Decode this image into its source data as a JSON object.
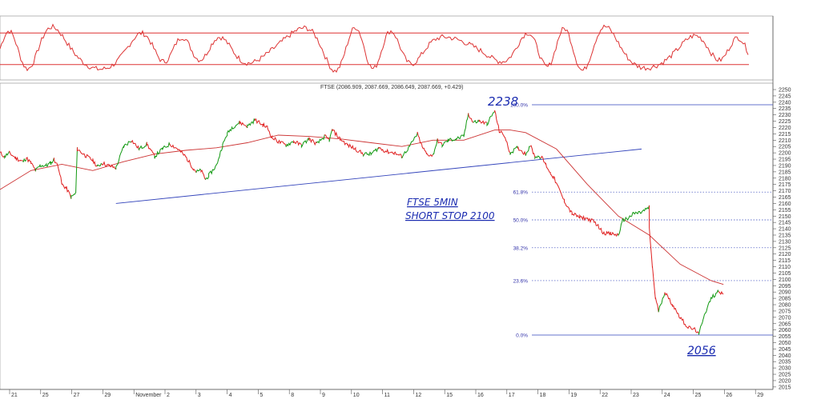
{
  "chart_data": [
    {
      "type": "line",
      "panel": "oscillator",
      "title": "",
      "series": [
        {
          "values": []
        }
      ],
      "reference_lines": [
        20,
        80
      ],
      "ylim": [
        0,
        100
      ]
    },
    {
      "type": "line",
      "panel": "price",
      "title": "FTSE (2086.909, 2087.669, 2086.649, 2087.669, +0.429)",
      "ylim": [
        2015,
        2250
      ],
      "y_ticks": [
        2015,
        2020,
        2025,
        2030,
        2035,
        2040,
        2045,
        2050,
        2055,
        2060,
        2065,
        2070,
        2075,
        2080,
        2085,
        2090,
        2095,
        2100,
        2105,
        2110,
        2115,
        2120,
        2125,
        2130,
        2135,
        2140,
        2145,
        2150,
        2155,
        2160,
        2165,
        2170,
        2175,
        2180,
        2185,
        2190,
        2195,
        2200,
        2205,
        2210,
        2215,
        2220,
        2225,
        2230,
        2235,
        2240,
        2245,
        2250
      ],
      "x_ticks": [
        "21",
        "25",
        "27",
        "29",
        "November",
        "2",
        "3",
        "4",
        "5",
        "8",
        "9",
        "10",
        "11",
        "12",
        "15",
        "16",
        "17",
        "18",
        "19",
        "22",
        "23",
        "24",
        "25",
        "26",
        "29"
      ],
      "price_path": [
        [
          0,
          2200
        ],
        [
          0.3,
          2197
        ],
        [
          0.6,
          2200
        ],
        [
          1,
          2196
        ],
        [
          1.3,
          2194
        ],
        [
          1.5,
          2193
        ],
        [
          1.7,
          2196
        ],
        [
          2,
          2192
        ],
        [
          2.3,
          2186
        ],
        [
          2.6,
          2190
        ],
        [
          3,
          2190
        ],
        [
          3.3,
          2192
        ],
        [
          3.5,
          2195
        ],
        [
          3.8,
          2188
        ],
        [
          4,
          2175
        ],
        [
          4.3,
          2172
        ],
        [
          4.6,
          2165
        ],
        [
          4.9,
          2168
        ],
        [
          5,
          2203
        ],
        [
          5.5,
          2198
        ],
        [
          6,
          2194
        ],
        [
          6.3,
          2189
        ],
        [
          6.6,
          2192
        ],
        [
          7,
          2190
        ],
        [
          7.5,
          2188
        ],
        [
          8,
          2205
        ],
        [
          8.5,
          2210
        ],
        [
          9,
          2203
        ],
        [
          9.5,
          2207
        ],
        [
          10,
          2197
        ],
        [
          10.5,
          2203
        ],
        [
          11,
          2207
        ],
        [
          11.5,
          2203
        ],
        [
          12,
          2197
        ],
        [
          12.5,
          2188
        ],
        [
          12.7,
          2185
        ],
        [
          13,
          2186
        ],
        [
          13.3,
          2179
        ],
        [
          13.5,
          2182
        ],
        [
          14,
          2190
        ],
        [
          14.4,
          2206
        ],
        [
          14.7,
          2215
        ],
        [
          15,
          2220
        ],
        [
          15.5,
          2224
        ],
        [
          16,
          2221
        ],
        [
          16.5,
          2226
        ],
        [
          17,
          2222
        ],
        [
          17.3,
          2220
        ],
        [
          17.6,
          2212
        ],
        [
          18,
          2209
        ],
        [
          18.5,
          2206
        ],
        [
          19,
          2209
        ],
        [
          19.5,
          2206
        ],
        [
          20,
          2211
        ],
        [
          20.5,
          2207
        ],
        [
          21,
          2213
        ],
        [
          21.3,
          2210
        ],
        [
          21.5,
          2218
        ],
        [
          22,
          2211
        ],
        [
          22.5,
          2206
        ],
        [
          23,
          2203
        ],
        [
          23.5,
          2199
        ],
        [
          24,
          2199
        ],
        [
          24.5,
          2204
        ],
        [
          25,
          2201
        ],
        [
          25.5,
          2200
        ],
        [
          26,
          2197
        ],
        [
          26.5,
          2205
        ],
        [
          27,
          2215
        ],
        [
          27.3,
          2205
        ],
        [
          27.6,
          2199
        ],
        [
          28,
          2198
        ],
        [
          28.3,
          2210
        ],
        [
          28.6,
          2206
        ],
        [
          29,
          2210
        ],
        [
          29.5,
          2211
        ],
        [
          30,
          2213
        ],
        [
          30.3,
          2231
        ],
        [
          30.6,
          2224
        ],
        [
          31,
          2225
        ],
        [
          31.5,
          2223
        ],
        [
          32,
          2233
        ],
        [
          32.3,
          2217
        ],
        [
          32.6,
          2214
        ],
        [
          33,
          2200
        ],
        [
          33.5,
          2204
        ],
        [
          34,
          2199
        ],
        [
          34.3,
          2206
        ],
        [
          34.6,
          2197
        ],
        [
          35,
          2197
        ],
        [
          35.3,
          2191
        ],
        [
          35.6,
          2184
        ],
        [
          35.8,
          2181
        ],
        [
          36.5,
          2162
        ],
        [
          37,
          2152
        ],
        [
          37.5,
          2149
        ],
        [
          38,
          2148
        ],
        [
          38.5,
          2145
        ],
        [
          39,
          2137
        ],
        [
          39.5,
          2136
        ],
        [
          40,
          2135
        ],
        [
          40.3,
          2147
        ],
        [
          40.6,
          2148
        ],
        [
          41,
          2152
        ],
        [
          41.5,
          2153
        ],
        [
          42,
          2157
        ],
        [
          42,
          2140
        ],
        [
          42.2,
          2110
        ],
        [
          42.4,
          2085
        ],
        [
          42.6,
          2075
        ],
        [
          43,
          2090
        ],
        [
          43.5,
          2080
        ],
        [
          44,
          2070
        ],
        [
          44.5,
          2062
        ],
        [
          45,
          2060
        ],
        [
          45.2,
          2056
        ],
        [
          45.5,
          2070
        ],
        [
          46,
          2085
        ],
        [
          46.5,
          2091
        ],
        [
          46.8,
          2088
        ]
      ],
      "ma_path": [
        [
          0,
          2171
        ],
        [
          2,
          2186
        ],
        [
          4,
          2191
        ],
        [
          6,
          2186
        ],
        [
          8,
          2193
        ],
        [
          10,
          2199
        ],
        [
          12,
          2202
        ],
        [
          14,
          2204
        ],
        [
          16,
          2208
        ],
        [
          18,
          2214
        ],
        [
          20,
          2213
        ],
        [
          22,
          2211
        ],
        [
          24,
          2208
        ],
        [
          26,
          2205
        ],
        [
          28,
          2210
        ],
        [
          30,
          2210
        ],
        [
          32,
          2218
        ],
        [
          33,
          2218
        ],
        [
          34,
          2216
        ],
        [
          36,
          2203
        ],
        [
          38,
          2175
        ],
        [
          40,
          2150
        ],
        [
          42,
          2135
        ],
        [
          44,
          2112
        ],
        [
          46,
          2099
        ],
        [
          46.8,
          2096
        ]
      ],
      "trendline": {
        "from": [
          7.5,
          2160
        ],
        "to": [
          41.5,
          2203
        ]
      },
      "fib_levels": [
        {
          "label": "100.0%",
          "value": 2238
        },
        {
          "label": "61.8%",
          "value": 2169
        },
        {
          "label": "50.0%",
          "value": 2147
        },
        {
          "label": "38.2%",
          "value": 2125
        },
        {
          "label": "23.6%",
          "value": 2099
        },
        {
          "label": "0.0%",
          "value": 2056
        }
      ],
      "annotations": [
        "2238",
        "FTSE 5MIN",
        "SHORT STOP 2100",
        "2056"
      ]
    }
  ]
}
